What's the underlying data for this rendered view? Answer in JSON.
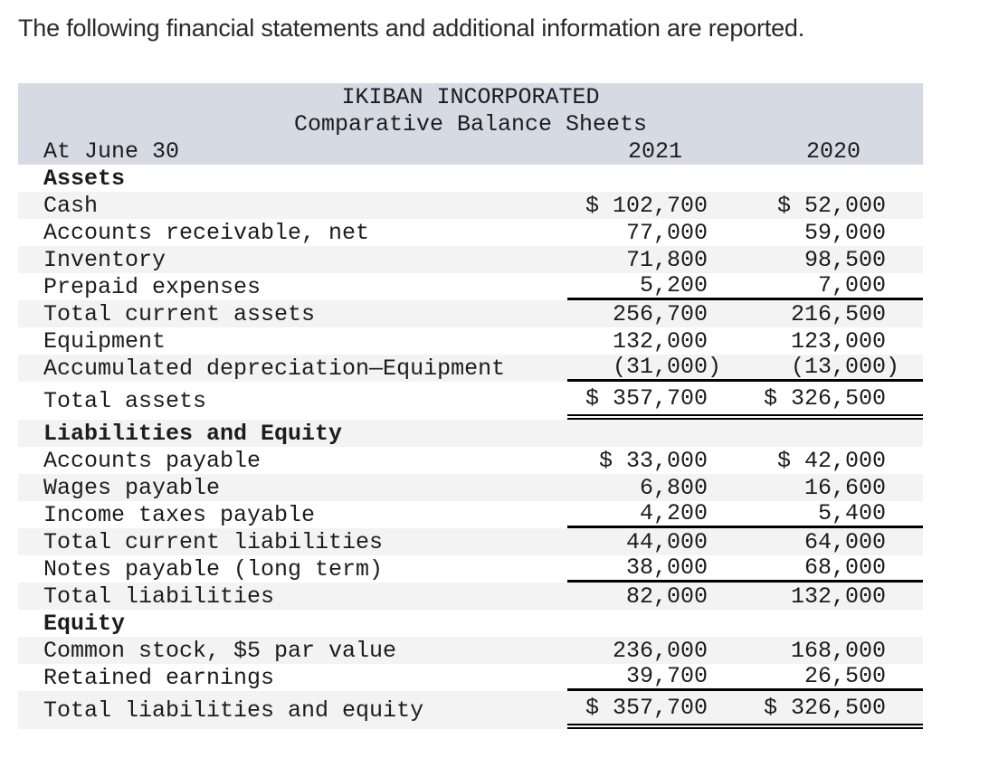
{
  "intro": "The following financial statements and additional information are reported.",
  "table": {
    "company": "IKIBAN INCORPORATED",
    "statement_title": "Comparative Balance Sheets",
    "date_label": "At June 30",
    "columns": [
      "2021",
      "2020"
    ],
    "rows": [
      {
        "label": "Assets",
        "bold": true,
        "v2021": "",
        "v2020": "",
        "rule": "none"
      },
      {
        "label": "Cash",
        "v2021": "$ 102,700",
        "v2020": "$ 52,000",
        "rule": "none"
      },
      {
        "label": "Accounts receivable, net",
        "v2021": "77,000",
        "v2020": "59,000",
        "rule": "none"
      },
      {
        "label": "Inventory",
        "v2021": "71,800",
        "v2020": "98,500",
        "rule": "none"
      },
      {
        "label": "Prepaid expenses",
        "v2021": "5,200",
        "v2020": "7,000",
        "rule": "single"
      },
      {
        "label": "Total current assets",
        "v2021": "256,700",
        "v2020": "216,500",
        "rule": "none"
      },
      {
        "label": "Equipment",
        "v2021": "132,000",
        "v2020": "123,000",
        "rule": "none"
      },
      {
        "label": "Accumulated depreciation—Equipment",
        "v2021": "(31,000)",
        "v2020": "(13,000)",
        "rule": "single"
      },
      {
        "label": "Total assets",
        "v2021": "$ 357,700",
        "v2020": "$ 326,500",
        "rule": "double",
        "tall": true
      },
      {
        "label": "Liabilities and Equity",
        "bold": true,
        "v2021": "",
        "v2020": "",
        "rule": "none"
      },
      {
        "label": "Accounts payable",
        "v2021": "$ 33,000",
        "v2020": "$ 42,000",
        "rule": "none"
      },
      {
        "label": "Wages payable",
        "v2021": "6,800",
        "v2020": "16,600",
        "rule": "none"
      },
      {
        "label": "Income taxes payable",
        "v2021": "4,200",
        "v2020": "5,400",
        "rule": "single"
      },
      {
        "label": "Total current liabilities",
        "v2021": "44,000",
        "v2020": "64,000",
        "rule": "none"
      },
      {
        "label": "Notes payable (long term)",
        "v2021": "38,000",
        "v2020": "68,000",
        "rule": "single"
      },
      {
        "label": "Total liabilities",
        "v2021": "82,000",
        "v2020": "132,000",
        "rule": "none"
      },
      {
        "label": "Equity",
        "bold": true,
        "v2021": "",
        "v2020": "",
        "rule": "none"
      },
      {
        "label": "Common stock, $5 par value",
        "v2021": "236,000",
        "v2020": "168,000",
        "rule": "none"
      },
      {
        "label": "Retained earnings",
        "v2021": "39,700",
        "v2020": "26,500",
        "rule": "single"
      },
      {
        "label": "Total liabilities and equity",
        "v2021": "$ 357,700",
        "v2020": "$ 326,500",
        "rule": "double",
        "tall": true
      }
    ]
  },
  "colors": {
    "header_band": "#d5dae3",
    "row_stripe": "#f3f3f3",
    "text": "#1c1c1c",
    "rule": "#000000"
  }
}
